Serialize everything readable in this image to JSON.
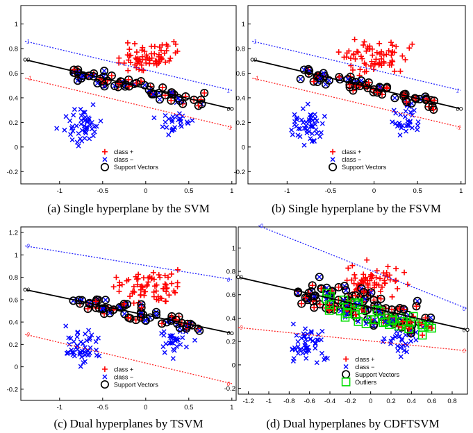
{
  "chart_data": [
    {
      "type": "scatter",
      "caption": "(a) Single hyperplane by the SVM",
      "xlim": [
        -1.45,
        1.05
      ],
      "ylim": [
        -0.3,
        1.15
      ],
      "xticks": [
        "-1",
        "-0.5",
        "0",
        "0.5",
        "1"
      ],
      "xtick_values": [
        -1,
        -0.5,
        0,
        0.5,
        1
      ],
      "yticks": [
        "-0.2",
        "0",
        "0.2",
        "0.4",
        "0.6",
        "0.8",
        "1"
      ],
      "ytick_values": [
        -0.2,
        0,
        0.2,
        0.4,
        0.6,
        0.8,
        1
      ],
      "legend": [
        "class +",
        "class −",
        "Support Vectors"
      ],
      "legend_position": "bottom-center",
      "lines": [
        {
          "role": "margin-plus",
          "color": "#2222ff",
          "style": "dotted",
          "label": "1",
          "x": [
            -1.4,
            1.0
          ],
          "y": [
            0.86,
            0.46
          ]
        },
        {
          "role": "hyperplane",
          "color": "#000000",
          "style": "solid",
          "label": "0",
          "x": [
            -1.4,
            1.0
          ],
          "y": [
            0.71,
            0.31
          ]
        },
        {
          "role": "margin-minus",
          "color": "#ff2222",
          "style": "dotted",
          "label": "-1",
          "x": [
            -1.4,
            1.0
          ],
          "y": [
            0.56,
            0.16
          ]
        }
      ]
    },
    {
      "type": "scatter",
      "caption": "(b) Single hyperplane by the FSVM",
      "xlim": [
        -1.45,
        1.05
      ],
      "ylim": [
        -0.3,
        1.15
      ],
      "xticks": [
        "-1",
        "-0.5",
        "0",
        "0.5",
        "1"
      ],
      "xtick_values": [
        -1,
        -0.5,
        0,
        0.5,
        1
      ],
      "yticks": [
        "-0.2",
        "0",
        "0.2",
        "0.4",
        "0.6",
        "0.8",
        "1"
      ],
      "ytick_values": [
        -0.2,
        0,
        0.2,
        0.4,
        0.6,
        0.8,
        1
      ],
      "legend": [
        "class +",
        "class −",
        "Support Vectors"
      ],
      "legend_position": "bottom-center",
      "lines": [
        {
          "role": "margin-plus",
          "color": "#2222ff",
          "style": "dotted",
          "label": "1",
          "x": [
            -1.4,
            1.0
          ],
          "y": [
            0.86,
            0.46
          ]
        },
        {
          "role": "hyperplane",
          "color": "#000000",
          "style": "solid",
          "label": "0",
          "x": [
            -1.4,
            1.0
          ],
          "y": [
            0.71,
            0.31
          ]
        },
        {
          "role": "margin-minus",
          "color": "#ff2222",
          "style": "dotted",
          "label": "-1",
          "x": [
            -1.4,
            1.0
          ],
          "y": [
            0.56,
            0.16
          ]
        }
      ]
    },
    {
      "type": "scatter",
      "caption": "(c) Dual hyperplanes by TSVM",
      "xlim": [
        -1.45,
        1.05
      ],
      "ylim": [
        -0.3,
        1.25
      ],
      "xticks": [
        "-1",
        "-0.5",
        "0",
        "0.5",
        "1"
      ],
      "xtick_values": [
        -1,
        -0.5,
        0,
        0.5,
        1
      ],
      "yticks": [
        "-0.2",
        "0",
        "0.2",
        "0.4",
        "0.6",
        "0.8",
        "1",
        "1.2"
      ],
      "ytick_values": [
        -0.2,
        0,
        0.2,
        0.4,
        0.6,
        0.8,
        1,
        1.2
      ],
      "legend": [
        "class +",
        "class −",
        "Support Vectors"
      ],
      "legend_position": "bottom-center",
      "lines": [
        {
          "role": "hyperplane-plus",
          "color": "#2222ff",
          "style": "dotted",
          "label": "0",
          "x": [
            -1.4,
            1.0
          ],
          "y": [
            1.08,
            0.78
          ]
        },
        {
          "role": "hyperplane",
          "color": "#000000",
          "style": "solid",
          "label": "0",
          "x": [
            -1.4,
            1.0
          ],
          "y": [
            0.69,
            0.3
          ]
        },
        {
          "role": "hyperplane-minus",
          "color": "#ff2222",
          "style": "dotted",
          "label": "0",
          "x": [
            -1.4,
            1.0
          ],
          "y": [
            0.29,
            -0.15
          ]
        }
      ]
    },
    {
      "type": "scatter",
      "caption": "(d) Dual hyperplanes by CDFTSVM",
      "xlim": [
        -1.3,
        0.95
      ],
      "ylim": [
        -0.25,
        1.18
      ],
      "xticks": [
        "-1.2",
        "-1",
        "-0.8",
        "-0.6",
        "-0.4",
        "-0.2",
        "0",
        "0.2",
        "0.4",
        "0.6",
        "0.8"
      ],
      "xtick_values": [
        -1.2,
        -1,
        -0.8,
        -0.6,
        -0.4,
        -0.2,
        0,
        0.2,
        0.4,
        0.6,
        0.8
      ],
      "yticks": [
        "-0.2",
        "0",
        "0.2",
        "0.4",
        "0.6",
        "0.8",
        "1"
      ],
      "ytick_values": [
        -0.2,
        0,
        0.2,
        0.4,
        0.6,
        0.8,
        1
      ],
      "legend": [
        "class +",
        "class −",
        "Support Vectors",
        "Outliers"
      ],
      "legend_position": "bottom-center",
      "lines": [
        {
          "role": "hyperplane-plus",
          "color": "#2222ff",
          "style": "dotted",
          "label": "0",
          "x": [
            -1.1,
            0.95
          ],
          "y": [
            1.19,
            0.48
          ]
        },
        {
          "role": "hyperplane",
          "color": "#000000",
          "style": "solid",
          "label": "0",
          "x": [
            -1.3,
            0.95
          ],
          "y": [
            0.75,
            0.3
          ]
        },
        {
          "role": "hyperplane-minus",
          "color": "#ff2222",
          "style": "dotted",
          "label": "0",
          "x": [
            -1.3,
            0.95
          ],
          "y": [
            0.32,
            0.12
          ]
        }
      ]
    }
  ],
  "colors": {
    "plus": "#ff0000",
    "minus": "#0000ff",
    "support": "#000000",
    "outlier": "#00dd00"
  }
}
